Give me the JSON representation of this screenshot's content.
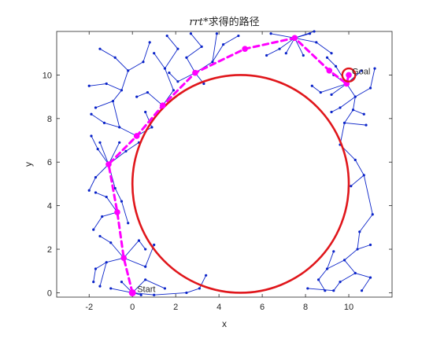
{
  "chart_data": {
    "type": "scatter",
    "title_italic": "rrt",
    "title_rest": "*求得的路径",
    "xlabel": "x",
    "ylabel": "y",
    "xlim": [
      -3.5,
      12
    ],
    "ylim": [
      -0.2,
      12
    ],
    "xticks": [
      -2,
      0,
      2,
      4,
      6,
      8,
      10
    ],
    "yticks": [
      0,
      2,
      4,
      6,
      8,
      10
    ],
    "box": true,
    "grid": false,
    "colors": {
      "tree": "#0b24c9",
      "node": "#0b24c9",
      "path": "#ff00ff",
      "obstacle": "#e0161b",
      "axes": "#262626"
    },
    "obstacle": {
      "shape": "circle",
      "center": [
        5,
        5
      ],
      "radius": 5
    },
    "start": {
      "label": "Start",
      "point": [
        0,
        0
      ]
    },
    "goal": {
      "label": "Goal",
      "point": [
        10,
        10
      ],
      "marker_radius": 0.3
    },
    "path": [
      [
        0,
        0
      ],
      [
        -0.4,
        1.6
      ],
      [
        -0.7,
        3.7
      ],
      [
        -1.1,
        5.9
      ],
      [
        0.2,
        7.2
      ],
      [
        1.4,
        8.6
      ],
      [
        2.9,
        10.1
      ],
      [
        5.2,
        11.2
      ],
      [
        7.5,
        11.7
      ],
      [
        9.1,
        10.2
      ],
      [
        9.9,
        9.6
      ],
      [
        10,
        10
      ]
    ],
    "tree_edges": [
      [
        [
          -1.1,
          5.9
        ],
        [
          -1.6,
          6.6
        ]
      ],
      [
        [
          -1.1,
          5.9
        ],
        [
          -1.7,
          5.3
        ]
      ],
      [
        [
          -1.1,
          5.9
        ],
        [
          -0.3,
          6.5
        ]
      ],
      [
        [
          -1.1,
          5.9
        ],
        [
          -1.5,
          6.9
        ]
      ],
      [
        [
          -1.1,
          5.9
        ],
        [
          -0.6,
          6.9
        ]
      ],
      [
        [
          -1.6,
          6.6
        ],
        [
          -1.9,
          7.2
        ]
      ],
      [
        [
          -1.7,
          5.3
        ],
        [
          -2.0,
          4.7
        ]
      ],
      [
        [
          -0.3,
          6.5
        ],
        [
          0.3,
          6.9
        ]
      ],
      [
        [
          -1.1,
          5.9
        ],
        [
          -0.8,
          4.8
        ]
      ],
      [
        [
          -0.8,
          4.8
        ],
        [
          -0.5,
          4.2
        ]
      ],
      [
        [
          -0.5,
          4.2
        ],
        [
          -0.2,
          3.2
        ]
      ],
      [
        [
          -0.7,
          3.7
        ],
        [
          -1.4,
          3.5
        ]
      ],
      [
        [
          -1.4,
          3.5
        ],
        [
          -1.8,
          2.9
        ]
      ],
      [
        [
          -0.7,
          3.7
        ],
        [
          -1.2,
          4.4
        ]
      ],
      [
        [
          -1.2,
          4.4
        ],
        [
          -1.7,
          4.6
        ]
      ],
      [
        [
          -0.4,
          1.6
        ],
        [
          -1.0,
          2.3
        ]
      ],
      [
        [
          -1.0,
          2.3
        ],
        [
          -1.5,
          2.6
        ]
      ],
      [
        [
          -0.4,
          1.6
        ],
        [
          -1.2,
          1.4
        ]
      ],
      [
        [
          -1.2,
          1.4
        ],
        [
          -1.7,
          1.1
        ]
      ],
      [
        [
          -1.7,
          1.1
        ],
        [
          -1.8,
          0.5
        ]
      ],
      [
        [
          -1.2,
          1.4
        ],
        [
          -1.5,
          0.3
        ]
      ],
      [
        [
          -0.4,
          1.6
        ],
        [
          0.3,
          2.4
        ]
      ],
      [
        [
          0.3,
          2.4
        ],
        [
          0.6,
          2.0
        ]
      ],
      [
        [
          -0.4,
          1.6
        ],
        [
          0.6,
          1.2
        ]
      ],
      [
        [
          0.6,
          1.2
        ],
        [
          1.0,
          2.2
        ]
      ],
      [
        [
          0,
          0
        ],
        [
          -0.5,
          0.5
        ]
      ],
      [
        [
          0,
          0
        ],
        [
          -1.0,
          0.2
        ]
      ],
      [
        [
          0,
          0
        ],
        [
          0.6,
          0.6
        ]
      ],
      [
        [
          0.6,
          0.6
        ],
        [
          1.5,
          0.2
        ]
      ],
      [
        [
          0,
          0
        ],
        [
          1.0,
          -0.1
        ]
      ],
      [
        [
          1.0,
          -0.1
        ],
        [
          2.5,
          0.0
        ]
      ],
      [
        [
          2.5,
          0.0
        ],
        [
          3.1,
          0.2
        ]
      ],
      [
        [
          3.1,
          0.2
        ],
        [
          3.4,
          0.8
        ]
      ],
      [
        [
          0,
          0
        ],
        [
          0.4,
          -0.1
        ]
      ],
      [
        [
          0.2,
          7.2
        ],
        [
          -0.6,
          7.6
        ]
      ],
      [
        [
          -0.6,
          7.6
        ],
        [
          -1.3,
          7.8
        ]
      ],
      [
        [
          -1.3,
          7.8
        ],
        [
          -1.9,
          8.2
        ]
      ],
      [
        [
          -0.6,
          7.6
        ],
        [
          -0.9,
          8.8
        ]
      ],
      [
        [
          -0.9,
          8.8
        ],
        [
          -1.7,
          8.5
        ]
      ],
      [
        [
          -0.9,
          8.8
        ],
        [
          -0.5,
          9.3
        ]
      ],
      [
        [
          -0.5,
          9.3
        ],
        [
          -1.2,
          9.6
        ]
      ],
      [
        [
          -1.2,
          9.6
        ],
        [
          -2.0,
          9.5
        ]
      ],
      [
        [
          -0.5,
          9.3
        ],
        [
          -0.2,
          10.2
        ]
      ],
      [
        [
          -0.2,
          10.2
        ],
        [
          -0.8,
          10.8
        ]
      ],
      [
        [
          -0.8,
          10.8
        ],
        [
          -1.5,
          11.2
        ]
      ],
      [
        [
          -0.2,
          10.2
        ],
        [
          0.5,
          10.6
        ]
      ],
      [
        [
          0.5,
          10.6
        ],
        [
          0.8,
          11.5
        ]
      ],
      [
        [
          0.2,
          7.2
        ],
        [
          0.9,
          7.6
        ]
      ],
      [
        [
          0.9,
          7.6
        ],
        [
          0.6,
          8.3
        ]
      ],
      [
        [
          1.4,
          8.6
        ],
        [
          0.7,
          9.2
        ]
      ],
      [
        [
          0.7,
          9.2
        ],
        [
          0.2,
          9.0
        ]
      ],
      [
        [
          1.4,
          8.6
        ],
        [
          1.9,
          9.3
        ]
      ],
      [
        [
          1.9,
          9.3
        ],
        [
          1.5,
          10.3
        ]
      ],
      [
        [
          1.5,
          10.3
        ],
        [
          1.0,
          11.0
        ]
      ],
      [
        [
          1.5,
          10.3
        ],
        [
          2.1,
          11.2
        ]
      ],
      [
        [
          2.1,
          11.2
        ],
        [
          1.6,
          11.8
        ]
      ],
      [
        [
          2.9,
          10.1
        ],
        [
          2.5,
          10.8
        ]
      ],
      [
        [
          2.5,
          10.8
        ],
        [
          3.2,
          11.3
        ]
      ],
      [
        [
          3.2,
          11.3
        ],
        [
          2.7,
          11.9
        ]
      ],
      [
        [
          2.9,
          10.1
        ],
        [
          2.1,
          9.7
        ]
      ],
      [
        [
          2.1,
          9.7
        ],
        [
          1.7,
          10.1
        ]
      ],
      [
        [
          2.9,
          10.1
        ],
        [
          3.7,
          10.6
        ]
      ],
      [
        [
          3.7,
          10.6
        ],
        [
          4.2,
          11.4
        ]
      ],
      [
        [
          4.2,
          11.4
        ],
        [
          4.9,
          11.8
        ]
      ],
      [
        [
          2.9,
          10.1
        ],
        [
          3.3,
          9.6
        ]
      ],
      [
        [
          3.7,
          10.6
        ],
        [
          3.9,
          11.9
        ]
      ],
      [
        [
          7.5,
          11.7
        ],
        [
          6.8,
          11.2
        ]
      ],
      [
        [
          6.8,
          11.2
        ],
        [
          6.2,
          10.9
        ]
      ],
      [
        [
          7.5,
          11.7
        ],
        [
          8.2,
          11.9
        ]
      ],
      [
        [
          7.5,
          11.7
        ],
        [
          8.5,
          11.5
        ]
      ],
      [
        [
          8.5,
          11.5
        ],
        [
          9.2,
          11.0
        ]
      ],
      [
        [
          7.5,
          11.7
        ],
        [
          6.4,
          11.9
        ]
      ],
      [
        [
          7.5,
          11.7
        ],
        [
          7.1,
          11.0
        ]
      ],
      [
        [
          7.5,
          11.7
        ],
        [
          7.9,
          10.9
        ]
      ],
      [
        [
          7.5,
          11.7
        ],
        [
          8.4,
          12.0
        ]
      ],
      [
        [
          9.9,
          9.6
        ],
        [
          9.4,
          10.4
        ]
      ],
      [
        [
          9.4,
          10.4
        ],
        [
          9.0,
          10.8
        ]
      ],
      [
        [
          9.9,
          9.6
        ],
        [
          8.7,
          9.2
        ]
      ],
      [
        [
          8.7,
          9.2
        ],
        [
          8.3,
          9.5
        ]
      ],
      [
        [
          9.9,
          9.6
        ],
        [
          9.2,
          9.1
        ]
      ],
      [
        [
          9.9,
          9.6
        ],
        [
          10.6,
          10.2
        ]
      ],
      [
        [
          9.9,
          9.6
        ],
        [
          10.3,
          9.0
        ]
      ],
      [
        [
          10.3,
          9.0
        ],
        [
          9.6,
          8.5
        ]
      ],
      [
        [
          9.6,
          8.5
        ],
        [
          9.2,
          8.3
        ]
      ],
      [
        [
          10.3,
          9.0
        ],
        [
          10.2,
          8.4
        ]
      ],
      [
        [
          10.2,
          8.4
        ],
        [
          9.8,
          7.8
        ]
      ],
      [
        [
          9.8,
          7.8
        ],
        [
          10.8,
          7.7
        ]
      ],
      [
        [
          10.2,
          8.4
        ],
        [
          10.7,
          8.2
        ]
      ],
      [
        [
          10.3,
          9.0
        ],
        [
          11.0,
          9.4
        ]
      ],
      [
        [
          11.0,
          9.4
        ],
        [
          11.2,
          10.3
        ]
      ],
      [
        [
          9.9,
          9.6
        ],
        [
          9.3,
          10.0
        ]
      ],
      [
        [
          9.8,
          7.8
        ],
        [
          9.6,
          6.8
        ]
      ],
      [
        [
          9.6,
          6.8
        ],
        [
          10.3,
          6.1
        ]
      ],
      [
        [
          10.3,
          6.1
        ],
        [
          10.7,
          5.4
        ]
      ],
      [
        [
          10.7,
          5.4
        ],
        [
          10.1,
          4.9
        ]
      ],
      [
        [
          10.7,
          5.4
        ],
        [
          11.1,
          3.6
        ]
      ],
      [
        [
          11.1,
          3.6
        ],
        [
          10.5,
          2.8
        ]
      ],
      [
        [
          10.5,
          2.8
        ],
        [
          10.4,
          2.0
        ]
      ],
      [
        [
          10.4,
          2.0
        ],
        [
          9.8,
          1.5
        ]
      ],
      [
        [
          9.8,
          1.5
        ],
        [
          10.3,
          0.9
        ]
      ],
      [
        [
          10.3,
          0.9
        ],
        [
          9.6,
          0.5
        ]
      ],
      [
        [
          9.6,
          0.5
        ],
        [
          9.3,
          0.1
        ]
      ],
      [
        [
          10.3,
          0.9
        ],
        [
          11.0,
          0.7
        ]
      ],
      [
        [
          11.0,
          0.7
        ],
        [
          10.6,
          0.1
        ]
      ],
      [
        [
          9.8,
          1.5
        ],
        [
          9.0,
          1.1
        ]
      ],
      [
        [
          9.0,
          1.1
        ],
        [
          8.6,
          0.6
        ]
      ],
      [
        [
          8.6,
          0.6
        ],
        [
          8.9,
          0.1
        ]
      ],
      [
        [
          9.0,
          1.1
        ],
        [
          9.3,
          1.9
        ]
      ],
      [
        [
          10.4,
          2.0
        ],
        [
          11.0,
          2.2
        ]
      ],
      [
        [
          9.3,
          0.1
        ],
        [
          8.1,
          0.2
        ]
      ]
    ]
  }
}
